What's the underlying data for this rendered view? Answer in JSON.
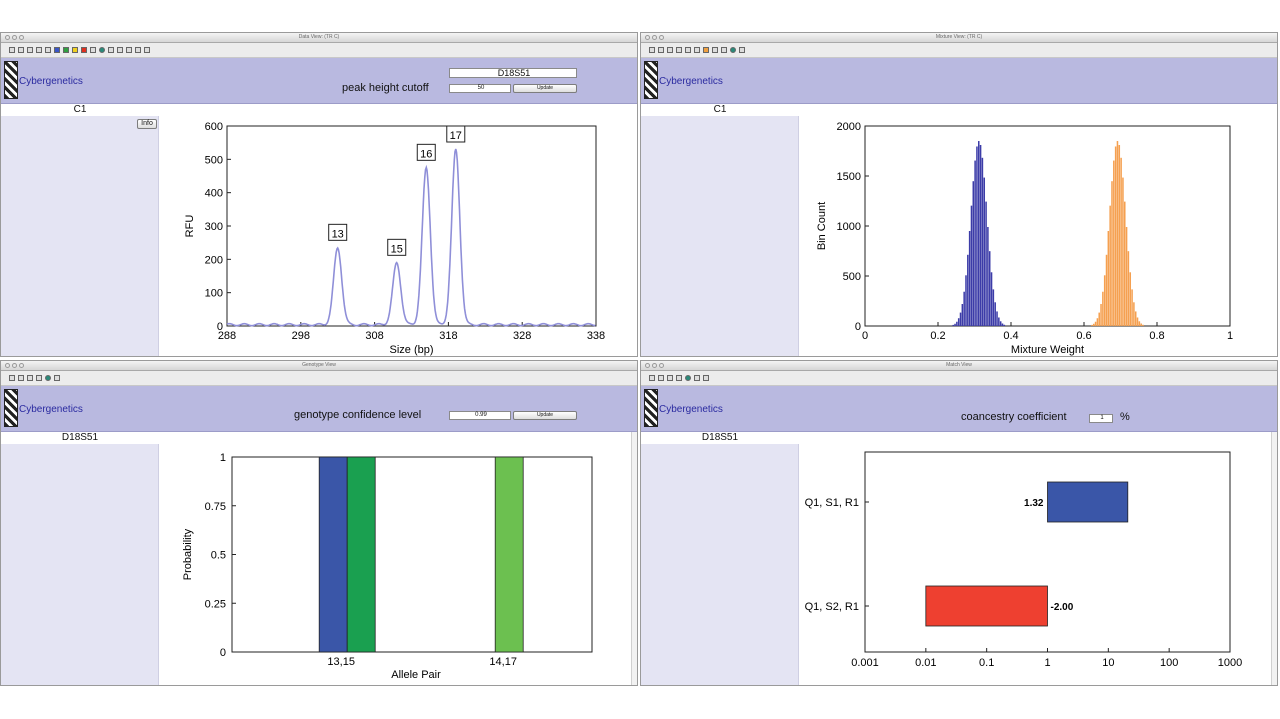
{
  "brand": "Cybergenetics",
  "windows": {
    "data_view": {
      "title": "Data View: (TR C)",
      "locus": "D18S51",
      "control_label": "peak height cutoff",
      "cutoff_value": "50",
      "update_label": "Update",
      "sample": "C1",
      "info_label": "Info"
    },
    "mixture_view": {
      "title": "Mixture View: (TR C)",
      "sample": "C1"
    },
    "genotype_view": {
      "title": "Genotype View",
      "locus": "D18S51",
      "control_label": "genotype confidence level",
      "confidence_value": "0.99",
      "update_label": "Update"
    },
    "match_view": {
      "title": "Match View",
      "locus": "D18S51",
      "control_label": "coancestry coefficient",
      "coefficient_value": "1",
      "percent": "%"
    }
  },
  "chart_data": [
    {
      "type": "line",
      "xlabel": "Size (bp)",
      "ylabel": "RFU",
      "xlim": [
        288,
        338
      ],
      "ylim": [
        0,
        600
      ],
      "xticks": [
        "288",
        "298",
        "308",
        "318",
        "328",
        "338"
      ],
      "yticks": [
        "0",
        "100",
        "200",
        "300",
        "400",
        "500",
        "600"
      ],
      "peaks": [
        {
          "label": "13",
          "x": 303,
          "y": 230
        },
        {
          "label": "15",
          "x": 311,
          "y": 185
        },
        {
          "label": "16",
          "x": 315,
          "y": 470
        },
        {
          "label": "17",
          "x": 319,
          "y": 525
        }
      ],
      "color": "#8f8fd8",
      "grid": false
    },
    {
      "type": "bar",
      "xlabel": "Mixture Weight",
      "ylabel": "Bin Count",
      "xlim": [
        0,
        1
      ],
      "ylim": [
        0,
        2000
      ],
      "xticks": [
        "0",
        "0.2",
        "0.4",
        "0.6",
        "0.8",
        "1"
      ],
      "yticks": [
        "0",
        "500",
        "1000",
        "1500",
        "2000"
      ],
      "series": [
        {
          "center": 0.31,
          "spread": 0.022,
          "peak": 1850,
          "color": "#3c3ca8"
        },
        {
          "center": 0.69,
          "spread": 0.022,
          "peak": 1850,
          "color": "#f5a050"
        }
      ],
      "grid": false
    },
    {
      "type": "bar",
      "xlabel": "Allele Pair",
      "ylabel": "Probability",
      "ylim": [
        0,
        1
      ],
      "yticks": [
        "0",
        "0.25",
        "0.5",
        "0.75",
        "1"
      ],
      "categories": [
        "13,15",
        "14,17"
      ],
      "bars": [
        {
          "category": "13,15",
          "value": 1,
          "color": "#3a56a8"
        },
        {
          "category": "13,15",
          "value": 1,
          "color": "#1aa050"
        },
        {
          "category": "14,17",
          "value": 1,
          "color": "#6cc050"
        }
      ],
      "grid": false
    },
    {
      "type": "bar",
      "orientation": "horizontal",
      "xscale": "log",
      "xlim": [
        0.001,
        1000
      ],
      "xticks": [
        "0.001",
        "0.01",
        "0.1",
        "1",
        "10",
        "100",
        "1000"
      ],
      "categories": [
        "Q1, S1, R1",
        "Q1, S2, R1"
      ],
      "values": [
        1.32,
        -2.0
      ],
      "value_labels": [
        "1.32",
        "-2.00"
      ],
      "colors": [
        "#3a56a8",
        "#ee4030"
      ],
      "grid": false
    }
  ]
}
